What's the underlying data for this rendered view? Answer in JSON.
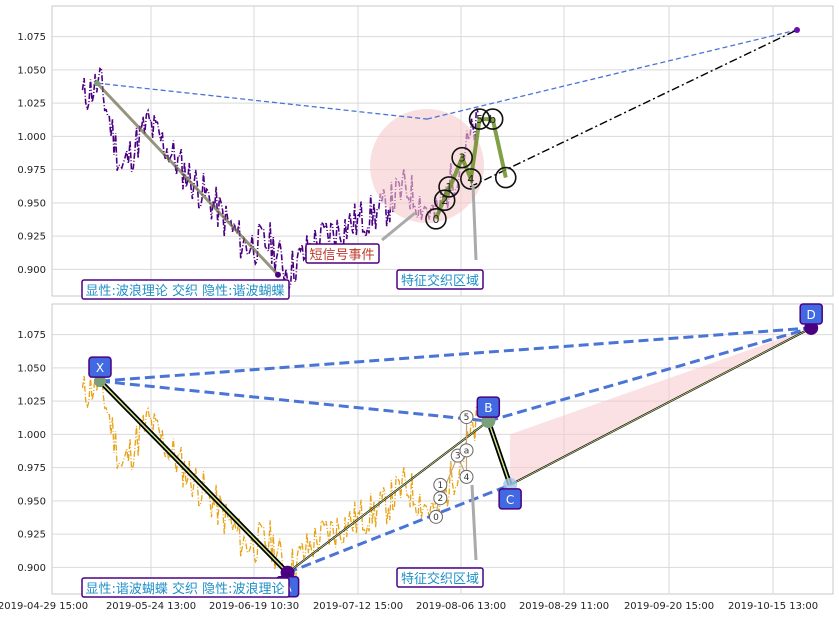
{
  "chart_data": [
    {
      "type": "line",
      "panel": "top",
      "ylim": [
        0.88,
        1.098
      ],
      "yticks": [
        "0.900",
        "0.925",
        "0.950",
        "0.975",
        "1.000",
        "1.025",
        "1.050",
        "1.075"
      ],
      "grid": true,
      "price_color": "#4b0082",
      "wave_points": [
        {
          "label": "0",
          "date": "2019-07-21",
          "price": 0.938
        },
        {
          "label": "1",
          "date": "2019-07-24",
          "price": 0.962
        },
        {
          "label": "2",
          "date": "2019-07-23",
          "price": 0.952
        },
        {
          "label": "3",
          "date": "2019-07-27",
          "price": 0.984
        },
        {
          "label": "4",
          "date": "2019-07-29",
          "price": 0.968
        },
        {
          "label": "5",
          "date": "2019-07-31",
          "price": 1.013
        },
        {
          "label": "b",
          "date": "2019-08-03",
          "price": 1.013
        },
        {
          "label": "",
          "date": "2019-08-06",
          "price": 0.969
        }
      ],
      "annotations": {
        "signal": "短信号事件",
        "zone": "特征交织区域",
        "info": "显性:波浪理论 交织 隐性:谐波蝴蝶"
      }
    },
    {
      "type": "line",
      "panel": "bottom",
      "ylim": [
        0.88,
        1.098
      ],
      "yticks": [
        "0.900",
        "0.925",
        "0.950",
        "0.975",
        "1.000",
        "1.025",
        "1.050",
        "1.075"
      ],
      "grid": true,
      "price_color": "#e8a317",
      "harmonic_points": [
        {
          "label": "X",
          "date": "2019-05-05",
          "price": 1.04
        },
        {
          "label": "A",
          "date": "2019-06-17",
          "price": 0.896
        },
        {
          "label": "B",
          "date": "2019-08-02",
          "price": 1.01
        },
        {
          "label": "C",
          "date": "2019-08-07",
          "price": 0.962
        },
        {
          "label": "D",
          "date": "2019-10-15",
          "price": 1.08
        }
      ],
      "wave_points": [
        {
          "label": "0",
          "date": "2019-07-21",
          "price": 0.938
        },
        {
          "label": "1",
          "date": "2019-07-22",
          "price": 0.962
        },
        {
          "label": "2",
          "date": "2019-07-22",
          "price": 0.952
        },
        {
          "label": "3",
          "date": "2019-07-26",
          "price": 0.984
        },
        {
          "label": "4",
          "date": "2019-07-28",
          "price": 0.968
        },
        {
          "label": "5",
          "date": "2019-07-28",
          "price": 1.013
        },
        {
          "label": "a",
          "date": "2019-07-28",
          "price": 0.988
        }
      ],
      "annotations": {
        "zone": "特征交织区域",
        "info": "显性:谐波蝴蝶 交织 隐性:波浪理论"
      }
    }
  ],
  "x_axis": {
    "ticks": [
      "2019-04-29 15:00",
      "2019-05-24 13:00",
      "2019-06-19 10:30",
      "2019-07-12 15:00",
      "2019-08-06 13:00",
      "2019-08-29 11:00",
      "2019-09-20 15:00",
      "2019-10-15 13:00"
    ]
  },
  "colors": {
    "dashed_blue": "#4a74d6",
    "label_box_fill": "#4169e1",
    "label_box_border": "#4b0082",
    "info_text": "#1e90c8",
    "signal_text": "#c0392b",
    "zone_pink": "#f7c9cc",
    "wave_green": "#6b8e23"
  }
}
